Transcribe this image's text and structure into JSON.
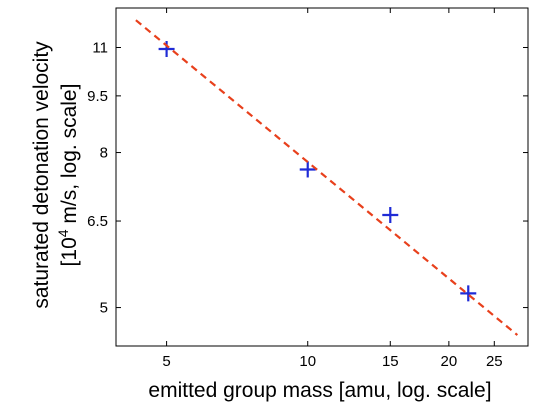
{
  "chart_data": {
    "type": "scatter",
    "xlabel": "emitted group mass [amu, log. scale]",
    "ylabel_line1": "saturated detonation velocity",
    "ylabel_line2_prefix": "[10",
    "ylabel_line2_exp": "4",
    "ylabel_line2_suffix": " m/s, log. scale]",
    "x_scale": "log",
    "y_scale": "log",
    "xlim": [
      3.9,
      29.5
    ],
    "ylim": [
      4.45,
      12.4
    ],
    "x_ticks": [
      5,
      10,
      15,
      20,
      25
    ],
    "x_tick_labels": [
      "5",
      "10",
      "15",
      "20",
      "25"
    ],
    "y_ticks": [
      5,
      6.5,
      8,
      9.5,
      11
    ],
    "y_tick_labels": [
      "5",
      "6.5",
      "8",
      "9.5",
      "11"
    ],
    "grid": false,
    "series": [
      {
        "type": "scatter",
        "marker": "plus",
        "color": "#1f2bd6",
        "x": [
          5,
          10,
          15,
          22
        ],
        "y": [
          10.95,
          7.6,
          6.62,
          5.22
        ]
      },
      {
        "type": "line",
        "style": "dashed",
        "color": "#e8401c",
        "x": [
          4.3,
          28
        ],
        "y": [
          11.95,
          4.6
        ]
      }
    ]
  }
}
